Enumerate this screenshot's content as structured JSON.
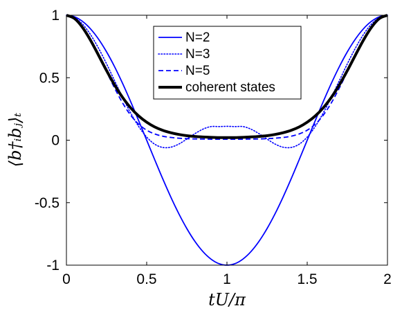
{
  "chart_data": {
    "type": "line",
    "title": "",
    "xlabel": "tU/π",
    "ylabel": "⟨b†ᵢbⱼ⟩ₜ",
    "xlim": [
      0,
      2
    ],
    "ylim": [
      -1,
      1
    ],
    "xticks": [
      "0",
      "0.5",
      "1",
      "1.5",
      "2"
    ],
    "yticks": [
      "1",
      "0.5",
      "0",
      "-0.5",
      "-1"
    ],
    "xtick_values": [
      0,
      0.5,
      1,
      1.5,
      2
    ],
    "ytick_values": [
      1,
      0.5,
      0,
      -0.5,
      -1
    ],
    "grid": false,
    "legend_position": "top-center",
    "series": [
      {
        "name": "N=2",
        "style": "solid",
        "color": "#0000ff",
        "x": [
          0,
          0.05,
          0.1,
          0.15,
          0.2,
          0.25,
          0.3,
          0.35,
          0.4,
          0.45,
          0.5,
          0.55,
          0.6,
          0.65,
          0.7,
          0.75,
          0.8,
          0.85,
          0.9,
          0.95,
          1,
          1.05,
          1.1,
          1.15,
          1.2,
          1.25,
          1.3,
          1.35,
          1.4,
          1.45,
          1.5,
          1.55,
          1.6,
          1.65,
          1.7,
          1.75,
          1.8,
          1.85,
          1.9,
          1.95,
          2
        ],
        "y": [
          1,
          0.988,
          0.951,
          0.891,
          0.809,
          0.707,
          0.588,
          0.454,
          0.309,
          0.156,
          0,
          -0.156,
          -0.309,
          -0.454,
          -0.588,
          -0.707,
          -0.809,
          -0.891,
          -0.951,
          -0.988,
          -1,
          -0.988,
          -0.951,
          -0.891,
          -0.809,
          -0.707,
          -0.588,
          -0.454,
          -0.309,
          -0.156,
          0,
          0.156,
          0.309,
          0.454,
          0.588,
          0.707,
          0.809,
          0.891,
          0.951,
          0.988,
          1
        ]
      },
      {
        "name": "N=3",
        "style": "dotted",
        "color": "#0000ff",
        "x": [
          0,
          0.05,
          0.1,
          0.15,
          0.2,
          0.25,
          0.3,
          0.35,
          0.4,
          0.45,
          0.5,
          0.55,
          0.6,
          0.65,
          0.7,
          0.75,
          0.8,
          0.85,
          0.9,
          0.95,
          1,
          1.05,
          1.1,
          1.15,
          1.2,
          1.25,
          1.3,
          1.35,
          1.4,
          1.45,
          1.5,
          1.55,
          1.6,
          1.65,
          1.7,
          1.75,
          1.8,
          1.85,
          1.9,
          1.95,
          2
        ],
        "y": [
          1,
          0.982,
          0.929,
          0.845,
          0.736,
          0.611,
          0.476,
          0.343,
          0.218,
          0.11,
          0.025,
          -0.032,
          -0.058,
          -0.056,
          -0.031,
          0.009,
          0.052,
          0.088,
          0.109,
          0.109,
          0.111,
          0.109,
          0.109,
          0.088,
          0.052,
          0.009,
          -0.031,
          -0.056,
          -0.058,
          -0.032,
          0.025,
          0.11,
          0.218,
          0.343,
          0.476,
          0.611,
          0.736,
          0.845,
          0.929,
          0.982,
          1
        ]
      },
      {
        "name": "N=5",
        "style": "dashed",
        "color": "#0000ff",
        "x": [
          0,
          0.05,
          0.1,
          0.15,
          0.2,
          0.25,
          0.3,
          0.35,
          0.4,
          0.45,
          0.5,
          0.55,
          0.6,
          0.65,
          0.7,
          0.75,
          0.8,
          0.85,
          0.9,
          0.95,
          1,
          1.05,
          1.1,
          1.15,
          1.2,
          1.25,
          1.3,
          1.35,
          1.4,
          1.45,
          1.5,
          1.55,
          1.6,
          1.65,
          1.7,
          1.75,
          1.8,
          1.85,
          1.9,
          1.95,
          2
        ],
        "y": [
          1,
          0.976,
          0.909,
          0.807,
          0.682,
          0.548,
          0.417,
          0.298,
          0.2,
          0.128,
          0.08,
          0.05,
          0.032,
          0.022,
          0.016,
          0.012,
          0.01,
          0.009,
          0.008,
          0.008,
          0.008,
          0.008,
          0.008,
          0.009,
          0.01,
          0.012,
          0.016,
          0.022,
          0.032,
          0.05,
          0.08,
          0.128,
          0.2,
          0.298,
          0.417,
          0.548,
          0.682,
          0.807,
          0.909,
          0.976,
          1
        ]
      },
      {
        "name": "coherent states",
        "style": "solid-thick",
        "color": "#000000",
        "x": [
          0,
          0.05,
          0.1,
          0.15,
          0.2,
          0.25,
          0.3,
          0.35,
          0.4,
          0.45,
          0.5,
          0.55,
          0.6,
          0.65,
          0.7,
          0.75,
          0.8,
          0.85,
          0.9,
          0.95,
          1,
          1.05,
          1.1,
          1.15,
          1.2,
          1.25,
          1.3,
          1.35,
          1.4,
          1.45,
          1.5,
          1.55,
          1.6,
          1.65,
          1.7,
          1.75,
          1.8,
          1.85,
          1.9,
          1.95,
          2
        ],
        "y": [
          1,
          0.974,
          0.903,
          0.8,
          0.68,
          0.557,
          0.442,
          0.342,
          0.259,
          0.194,
          0.144,
          0.106,
          0.079,
          0.06,
          0.046,
          0.036,
          0.03,
          0.026,
          0.023,
          0.021,
          0.021,
          0.021,
          0.023,
          0.026,
          0.03,
          0.036,
          0.046,
          0.06,
          0.079,
          0.106,
          0.144,
          0.194,
          0.259,
          0.342,
          0.442,
          0.557,
          0.68,
          0.8,
          0.903,
          0.974,
          1
        ]
      }
    ]
  }
}
